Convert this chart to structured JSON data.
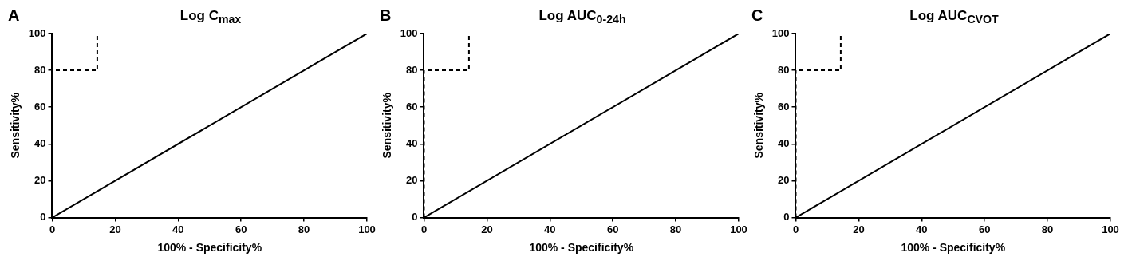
{
  "chart_data": [
    {
      "type": "line",
      "title": "Log C$_{max}$",
      "xlabel": "100% - Specificity%",
      "ylabel": "Sensitivity%",
      "annotations": [
        "A"
      ],
      "xlim": [
        0,
        100
      ],
      "ylim": [
        0,
        100
      ],
      "xticks": [
        0,
        20,
        40,
        60,
        80,
        100
      ],
      "yticks": [
        0,
        20,
        40,
        60,
        80,
        100
      ],
      "grid": false,
      "legend": false,
      "series": [
        {
          "color": "#000000",
          "line_style": "dashed",
          "x": [
            0,
            0,
            14.3,
            14.3,
            100
          ],
          "values": [
            0,
            80,
            80,
            100,
            100
          ]
        },
        {
          "color": "#000000",
          "line_style": "solid",
          "x": [
            0,
            100
          ],
          "values": [
            0,
            100
          ]
        }
      ]
    },
    {
      "type": "line",
      "title": "Log AUC$_{0-24h}$",
      "xlabel": "100% - Specificity%",
      "ylabel": "Sensitivity%",
      "annotations": [
        "B"
      ],
      "xlim": [
        0,
        100
      ],
      "ylim": [
        0,
        100
      ],
      "xticks": [
        0,
        20,
        40,
        60,
        80,
        100
      ],
      "yticks": [
        0,
        20,
        40,
        60,
        80,
        100
      ],
      "grid": false,
      "legend": false,
      "series": [
        {
          "color": "#000000",
          "line_style": "dashed",
          "x": [
            0,
            0,
            14.3,
            14.3,
            100
          ],
          "values": [
            0,
            80,
            80,
            100,
            100
          ]
        },
        {
          "color": "#000000",
          "line_style": "solid",
          "x": [
            0,
            100
          ],
          "values": [
            0,
            100
          ]
        }
      ]
    },
    {
      "type": "line",
      "title": "Log AUC$_{CVOT}$",
      "xlabel": "100% - Specificity%",
      "ylabel": "Sensitivity%",
      "annotations": [
        "C"
      ],
      "xlim": [
        0,
        100
      ],
      "ylim": [
        0,
        100
      ],
      "xticks": [
        0,
        20,
        40,
        60,
        80,
        100
      ],
      "yticks": [
        0,
        20,
        40,
        60,
        80,
        100
      ],
      "grid": false,
      "legend": false,
      "series": [
        {
          "color": "#000000",
          "line_style": "dashed",
          "x": [
            0,
            0,
            14.3,
            14.3,
            100
          ],
          "values": [
            0,
            80,
            80,
            100,
            100
          ]
        },
        {
          "color": "#000000",
          "line_style": "solid",
          "x": [
            0,
            100
          ],
          "values": [
            0,
            100
          ]
        }
      ]
    }
  ]
}
